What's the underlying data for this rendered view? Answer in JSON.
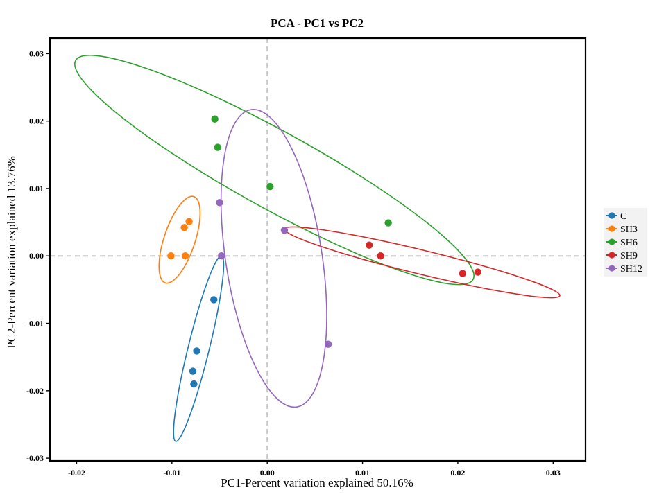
{
  "chart_data": {
    "type": "scatter",
    "title": "PCA - PC1 vs PC2",
    "xlabel": "PC1-Percent variation explained 50.16%",
    "ylabel": "PC2-Percent variation explained 13.76%",
    "xlim": [
      -0.0228,
      0.0334
    ],
    "ylim": [
      -0.0304,
      0.0323
    ],
    "xticks": [
      -0.02,
      -0.01,
      0.0,
      0.01,
      0.02,
      0.03
    ],
    "xtick_labels": [
      "-0.02",
      "-0.01",
      "0.00",
      "0.01",
      "0.02",
      "0.03"
    ],
    "yticks": [
      -0.03,
      -0.02,
      -0.01,
      0.0,
      0.01,
      0.02,
      0.03
    ],
    "ytick_labels": [
      "-0.03",
      "-0.02",
      "-0.01",
      "0.00",
      "0.01",
      "0.02",
      "0.03"
    ],
    "reference_lines": {
      "x": 0,
      "y": 0,
      "style": "dashed",
      "color": "#c8c8c8"
    },
    "legend_position": "right",
    "series": [
      {
        "name": "C",
        "color": "#1f77b4",
        "points": [
          [
            -0.0056,
            -0.0065
          ],
          [
            -0.0074,
            -0.0141
          ],
          [
            -0.0078,
            -0.0171
          ],
          [
            -0.0077,
            -0.019
          ]
        ],
        "ellipse": [
          [
            -0.0048,
            0.0
          ],
          [
            -0.0096,
            -0.0275
          ]
        ]
      },
      {
        "name": "SH3",
        "color": "#ff7f0e",
        "points": [
          [
            -0.0101,
            0.0
          ],
          [
            -0.0087,
            0.0042
          ],
          [
            -0.0082,
            0.0051
          ],
          [
            -0.0086,
            0.0
          ]
        ],
        "ellipse": [
          [
            -0.0107,
            -0.004
          ],
          [
            -0.0077,
            0.0088
          ]
        ]
      },
      {
        "name": "SH6",
        "color": "#2ca02c",
        "points": [
          [
            -0.0055,
            0.0203
          ],
          [
            -0.0052,
            0.0161
          ],
          [
            0.0003,
            0.0103
          ],
          [
            0.0127,
            0.0049
          ]
        ],
        "ellipse": [
          [
            -0.0201,
            0.029
          ],
          [
            0.0216,
            -0.0035
          ]
        ]
      },
      {
        "name": "SH9",
        "color": "#d62728",
        "points": [
          [
            0.0107,
            0.0016
          ],
          [
            0.0119,
            0.0
          ],
          [
            0.0205,
            -0.0026
          ],
          [
            0.0221,
            -0.0024
          ]
        ],
        "ellipse": [
          [
            0.0018,
            0.004
          ],
          [
            0.0307,
            -0.0059
          ]
        ]
      },
      {
        "name": "SH12",
        "color": "#9467bd",
        "points": [
          [
            -0.005,
            0.0079
          ],
          [
            -0.0048,
            0.0
          ],
          [
            0.0018,
            0.0038
          ],
          [
            0.0064,
            -0.0131
          ]
        ],
        "ellipse": [
          [
            -0.0017,
            0.0217
          ],
          [
            0.0031,
            -0.0224
          ]
        ]
      }
    ]
  }
}
